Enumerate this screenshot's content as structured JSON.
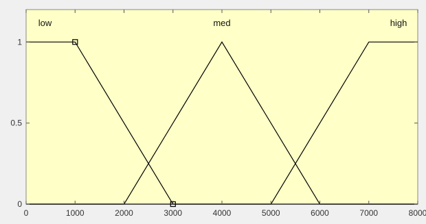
{
  "chart_data": {
    "type": "line",
    "x_ticks": [
      0,
      1000,
      2000,
      3000,
      4000,
      5000,
      6000,
      7000,
      8000
    ],
    "y_ticks": [
      0,
      0.5,
      1
    ],
    "xlim": [
      0,
      8000
    ],
    "ylim": [
      0,
      1.2
    ],
    "grid": false,
    "series": [
      {
        "name": "low",
        "x": [
          0,
          1000,
          3000,
          8000
        ],
        "y": [
          1,
          1,
          0,
          0
        ]
      },
      {
        "name": "med",
        "x": [
          0,
          2000,
          4000,
          6000,
          8000
        ],
        "y": [
          0,
          0,
          1,
          0,
          0
        ]
      },
      {
        "name": "high",
        "x": [
          0,
          5000,
          7000,
          8000
        ],
        "y": [
          0,
          0,
          1,
          1
        ]
      }
    ],
    "selected_points": [
      {
        "x": 1000,
        "y": 1
      },
      {
        "x": 3000,
        "y": 0
      }
    ],
    "colors": {
      "plot_bg": "#ffffc8",
      "figure_bg": "#f0f0f0",
      "line": "#000000"
    }
  }
}
